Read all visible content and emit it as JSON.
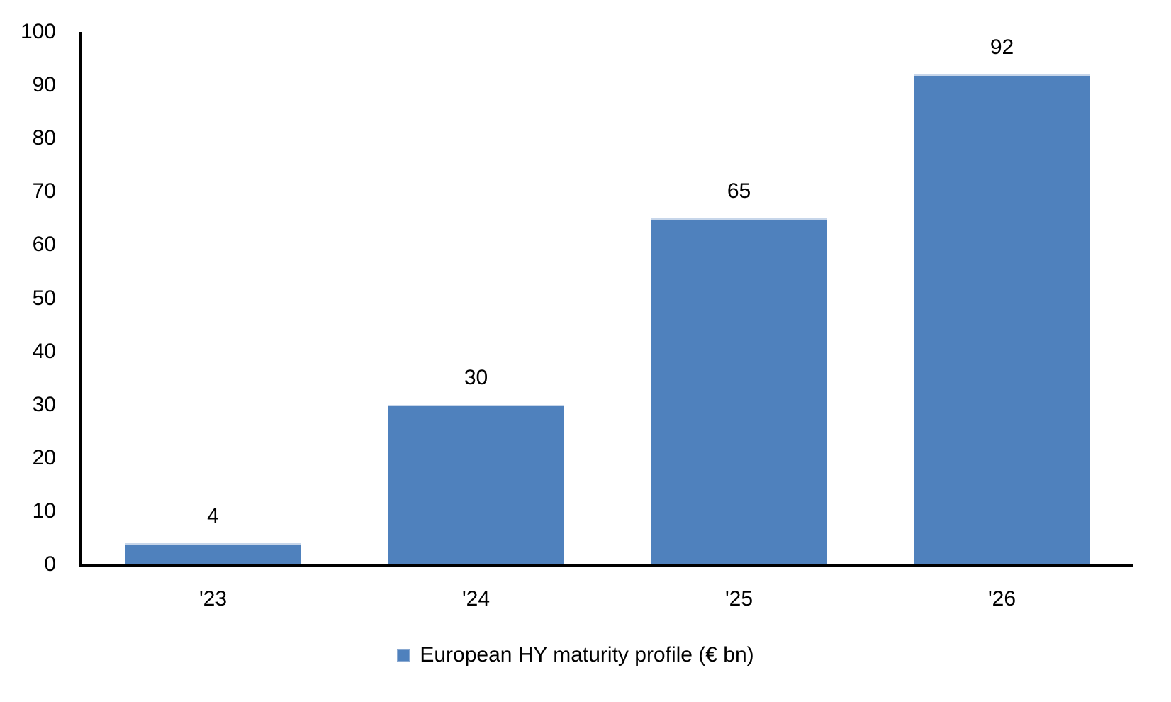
{
  "chart_data": {
    "type": "bar",
    "title": "",
    "xlabel": "",
    "ylabel": "",
    "categories": [
      "'23",
      "'24",
      "'25",
      "'26"
    ],
    "values": [
      4,
      30,
      65,
      92
    ],
    "series": [
      {
        "name": "European HY maturity profile (€ bn)",
        "values": [
          4,
          30,
          65,
          92
        ]
      }
    ],
    "data_labels": [
      "4",
      "30",
      "65",
      "92"
    ],
    "ylim": [
      0,
      100
    ],
    "ytick_step": 10,
    "yticks": [
      0,
      10,
      20,
      30,
      40,
      50,
      60,
      70,
      80,
      90,
      100
    ],
    "grid": false,
    "legend_position": "bottom-center",
    "colors": {
      "bar": "#4F81BD",
      "bar_top_edge": "#C7D6EA",
      "legend_marker_border": "#8AA9D1",
      "axis": "#000000",
      "text": "#000000",
      "background": "#FFFFFF"
    }
  }
}
